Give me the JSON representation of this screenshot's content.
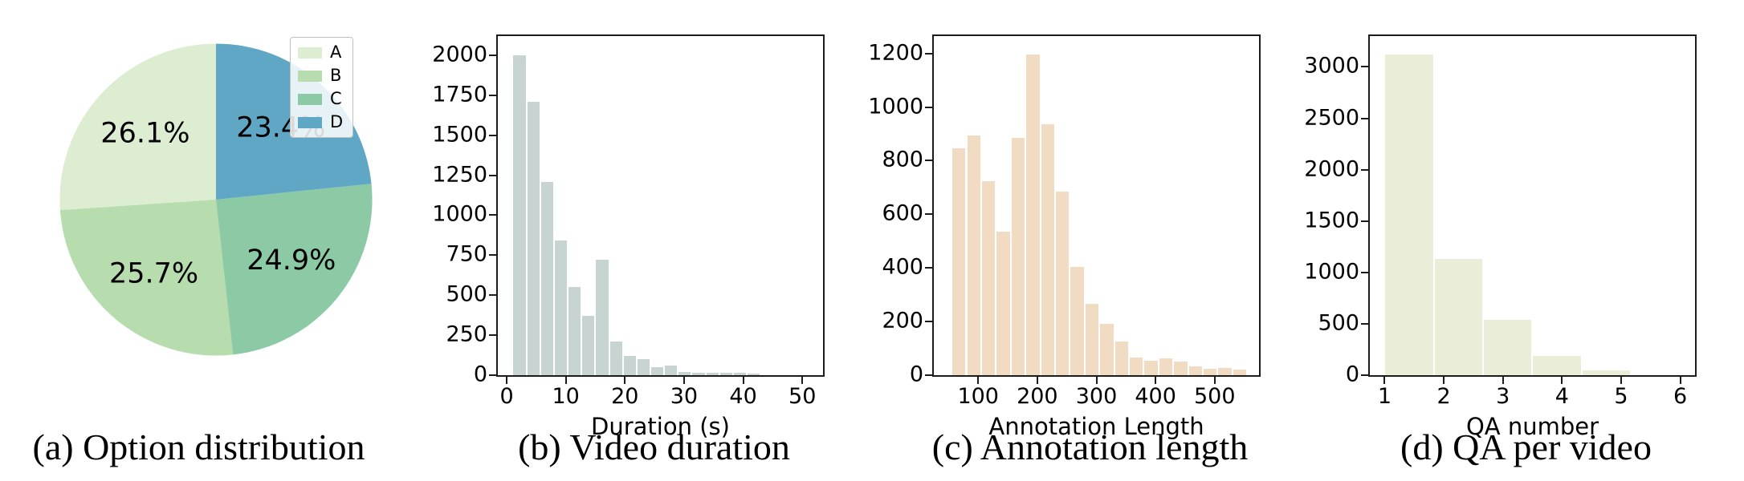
{
  "accent_colors": {
    "pie_a": "#dcedd2",
    "pie_b": "#b7dcae",
    "pie_c": "#8ccaa6",
    "pie_d": "#60a7c6",
    "hist_duration": "#c8d4d1",
    "hist_annotation": "#f1dbc2",
    "hist_qa": "#eaeed9"
  },
  "chart_data": [
    {
      "id": "a",
      "type": "pie",
      "caption": "(a) Option distribution",
      "categories": [
        "A",
        "B",
        "C",
        "D"
      ],
      "values": [
        26.1,
        25.7,
        24.9,
        23.4
      ],
      "percent_labels": [
        "26.1%",
        "25.7%",
        "24.9%",
        "23.4%"
      ],
      "colors": [
        "#dcedd2",
        "#b7dcae",
        "#8ccaa6",
        "#60a7c6"
      ],
      "start_angle_deg": 90,
      "direction": "counterclockwise",
      "pct_distance": 0.62,
      "legend": {
        "position": "upper-right",
        "entries": [
          "A",
          "B",
          "C",
          "D"
        ]
      }
    },
    {
      "id": "b",
      "type": "bar",
      "caption": "(b) Video duration",
      "title": "",
      "xlabel": "Duration (s)",
      "ylabel": "",
      "bar_color": "#c8d4d1",
      "bin_start": 1,
      "bin_width": 2.33,
      "values": [
        2000,
        1710,
        1210,
        840,
        550,
        370,
        720,
        210,
        120,
        100,
        50,
        60,
        20,
        15,
        13,
        13,
        13,
        12
      ],
      "xticks": [
        0,
        10,
        20,
        30,
        40,
        50
      ],
      "yticks": [
        0,
        250,
        500,
        750,
        1000,
        1250,
        1500,
        1750,
        2000
      ],
      "xlim": [
        -1.5,
        53.5
      ],
      "ylim": [
        0,
        2120
      ],
      "grid": false,
      "legend": null
    },
    {
      "id": "c",
      "type": "bar",
      "caption": "(c) Annotation length",
      "title": "",
      "xlabel": "Annotation Length",
      "ylabel": "",
      "bar_color": "#f1dbc2",
      "bin_start": 55,
      "bin_width": 25,
      "values": [
        845,
        895,
        725,
        535,
        885,
        1195,
        935,
        685,
        405,
        265,
        190,
        125,
        65,
        55,
        62,
        52,
        33,
        25,
        27,
        20
      ],
      "xticks": [
        100,
        200,
        300,
        400,
        500
      ],
      "yticks": [
        0,
        200,
        400,
        600,
        800,
        1000,
        1200
      ],
      "xlim": [
        25,
        575
      ],
      "ylim": [
        0,
        1265
      ],
      "grid": false,
      "legend": null
    },
    {
      "id": "d",
      "type": "bar",
      "caption": "(d) QA per video",
      "title": "",
      "xlabel": "QA number",
      "ylabel": "",
      "bar_color": "#eaeed9",
      "bin_start": 1,
      "bin_width": 0.8333,
      "values": [
        3120,
        1130,
        540,
        185,
        50,
        0
      ],
      "xticks": [
        1,
        2,
        3,
        4,
        5,
        6
      ],
      "yticks": [
        0,
        500,
        1000,
        1500,
        2000,
        2500,
        3000
      ],
      "xlim": [
        0.75,
        6.25
      ],
      "ylim": [
        0,
        3300
      ],
      "grid": false,
      "legend": null
    }
  ]
}
